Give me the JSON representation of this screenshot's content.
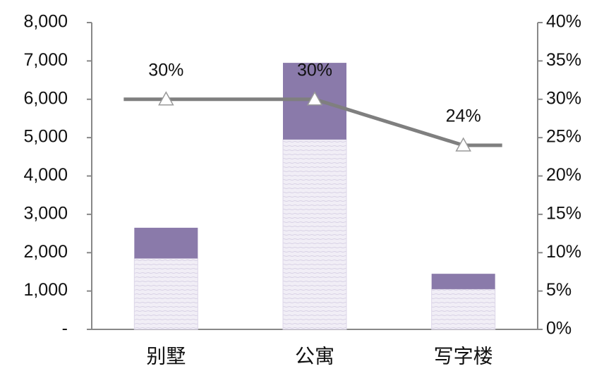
{
  "chart_data": {
    "type": "bar",
    "categories": [
      "别墅",
      "公寓",
      "写字楼"
    ],
    "series": [
      {
        "color": "#ece9f3",
        "values": [
          1850,
          4950,
          1050
        ]
      },
      {
        "color": "#8a7aaa",
        "values": [
          800,
          2000,
          400
        ]
      },
      {
        "type": "line",
        "axis": "y2",
        "color": "#7f7f7f",
        "values": [
          30,
          30,
          24
        ],
        "value_labels": [
          "30%",
          "30%",
          "24%"
        ]
      }
    ],
    "stacked": true,
    "ylim": [
      0,
      8000
    ],
    "yticks": [
      {
        "value": 0,
        "label": "-"
      },
      {
        "value": 1000,
        "label": "1,000"
      },
      {
        "value": 2000,
        "label": "2,000"
      },
      {
        "value": 3000,
        "label": "3,000"
      },
      {
        "value": 4000,
        "label": "4,000"
      },
      {
        "value": 5000,
        "label": "5,000"
      },
      {
        "value": 6000,
        "label": "6,000"
      },
      {
        "value": 7000,
        "label": "7,000"
      },
      {
        "value": 8000,
        "label": "8,000"
      }
    ],
    "y2lim": [
      0,
      40
    ],
    "y2ticks": [
      {
        "value": 0,
        "label": "0%"
      },
      {
        "value": 5,
        "label": "5%"
      },
      {
        "value": 10,
        "label": "10%"
      },
      {
        "value": 15,
        "label": "15%"
      },
      {
        "value": 20,
        "label": "20%"
      },
      {
        "value": 25,
        "label": "25%"
      },
      {
        "value": 30,
        "label": "30%"
      },
      {
        "value": 35,
        "label": "35%"
      },
      {
        "value": 40,
        "label": "40%"
      }
    ],
    "grid": false
  }
}
